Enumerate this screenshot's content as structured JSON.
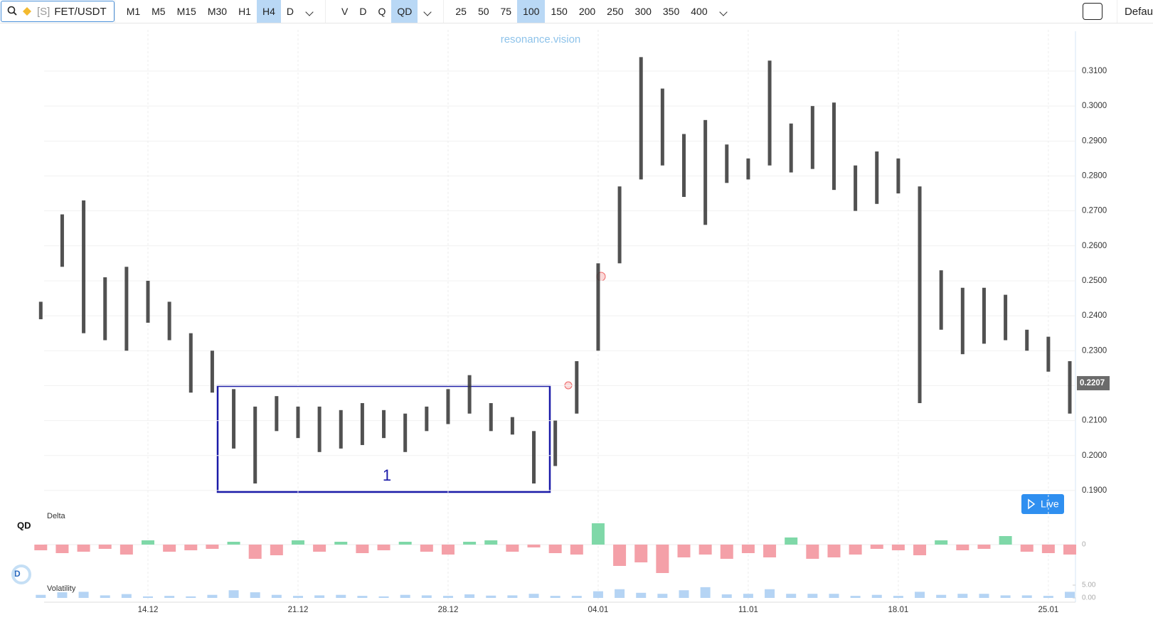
{
  "toolbar": {
    "symbol_prefix": "[S]",
    "symbol": "FET/USDT",
    "timeframes": [
      {
        "label": "M1",
        "active": false
      },
      {
        "label": "M5",
        "active": false
      },
      {
        "label": "M15",
        "active": false
      },
      {
        "label": "M30",
        "active": false
      },
      {
        "label": "H1",
        "active": false
      },
      {
        "label": "H4",
        "active": true
      },
      {
        "label": "D",
        "active": false
      }
    ],
    "modes": [
      {
        "label": "V",
        "active": false
      },
      {
        "label": "D",
        "active": false
      },
      {
        "label": "Q",
        "active": false
      },
      {
        "label": "QD",
        "active": true
      }
    ],
    "counts": [
      {
        "label": "25",
        "active": false
      },
      {
        "label": "50",
        "active": false
      },
      {
        "label": "75",
        "active": false
      },
      {
        "label": "100",
        "active": true
      },
      {
        "label": "150",
        "active": false
      },
      {
        "label": "200",
        "active": false
      },
      {
        "label": "250",
        "active": false
      },
      {
        "label": "300",
        "active": false
      },
      {
        "label": "350",
        "active": false
      },
      {
        "label": "400",
        "active": false
      }
    ],
    "layout": "Defau"
  },
  "watermark": "resonance.vision",
  "annotation": "1",
  "panel_labels": {
    "qd": "QD",
    "d": "D",
    "delta": "Delta",
    "volatility": "Volatility"
  },
  "live_button": "Live",
  "chart_data": {
    "type": "range-bar",
    "categories": [
      null,
      null,
      null,
      null,
      null,
      "14.12",
      null,
      null,
      null,
      null,
      null,
      null,
      "21.12",
      null,
      null,
      null,
      null,
      null,
      null,
      "28.12",
      null,
      null,
      null,
      null,
      null,
      null,
      "04.01",
      null,
      null,
      null,
      null,
      null,
      null,
      "11.01",
      null,
      null,
      null,
      null,
      null,
      null,
      "18.01",
      null,
      null,
      null,
      null,
      null,
      null,
      "25.01",
      null
    ],
    "series": [
      {
        "name": "High",
        "color": "#333333",
        "values": [
          0.244,
          0.269,
          0.273,
          0.251,
          0.254,
          0.25,
          0.244,
          0.235,
          0.23,
          0.219,
          0.214,
          0.217,
          0.214,
          0.214,
          0.213,
          0.215,
          0.213,
          0.212,
          0.214,
          0.219,
          0.223,
          0.215,
          0.211,
          0.207,
          0.21,
          0.227,
          0.255,
          0.277,
          0.314,
          0.305,
          0.292,
          0.296,
          0.289,
          0.285,
          0.313,
          0.295,
          0.3,
          0.301,
          0.283,
          0.287,
          0.285,
          0.277,
          0.253,
          0.248,
          0.248,
          0.246,
          0.236,
          0.234,
          0.227
        ]
      },
      {
        "name": "Low",
        "color": "#333333",
        "values": [
          0.239,
          0.254,
          0.235,
          0.233,
          0.23,
          0.238,
          0.233,
          0.218,
          0.218,
          0.202,
          0.192,
          0.207,
          0.205,
          0.201,
          0.202,
          0.203,
          0.205,
          0.201,
          0.207,
          0.209,
          0.212,
          0.207,
          0.206,
          0.192,
          0.197,
          0.212,
          0.23,
          0.255,
          0.279,
          0.283,
          0.274,
          0.266,
          0.278,
          0.279,
          0.283,
          0.281,
          0.282,
          0.276,
          0.27,
          0.272,
          0.275,
          0.215,
          0.236,
          0.229,
          0.232,
          0.233,
          0.23,
          0.224,
          0.212
        ]
      }
    ],
    "ylim": [
      0.1855,
      0.3218
    ],
    "yticks": [
      {
        "value": 0.19,
        "label": "0.1900"
      },
      {
        "value": 0.2,
        "label": "0.2000"
      },
      {
        "value": 0.21,
        "label": "0.2100"
      },
      {
        "value": 0.22,
        "label": "0.2200"
      },
      {
        "value": 0.23,
        "label": "0.2300"
      },
      {
        "value": 0.24,
        "label": "0.2400"
      },
      {
        "value": 0.25,
        "label": "0.2500"
      },
      {
        "value": 0.26,
        "label": "0.2600"
      },
      {
        "value": 0.27,
        "label": "0.2700"
      },
      {
        "value": 0.28,
        "label": "0.2800"
      },
      {
        "value": 0.29,
        "label": "0.2900"
      },
      {
        "value": 0.3,
        "label": "0.3000"
      },
      {
        "value": 0.31,
        "label": "0.3100"
      }
    ],
    "current_price": {
      "value": 0.2207,
      "label": "0.2207"
    },
    "grid": true,
    "delta": {
      "values": [
        -8,
        -12,
        -10,
        -6,
        -14,
        6,
        -10,
        -8,
        -6,
        4,
        -20,
        -15,
        6,
        -10,
        4,
        -12,
        -8,
        4,
        -10,
        -14,
        4,
        6,
        -10,
        -4,
        -12,
        -14,
        30,
        -30,
        -25,
        -40,
        -18,
        -14,
        -20,
        -12,
        -18,
        10,
        -20,
        -18,
        -14,
        -6,
        -8,
        -15,
        6,
        -8,
        -6,
        12,
        -10,
        -12,
        -14
      ],
      "positive_color": "#7fd8a8",
      "negative_color": "#f4a0a8",
      "ylim": [
        -45,
        35
      ],
      "yticks": [
        0
      ]
    },
    "volatility": {
      "values": [
        1.2,
        2.2,
        2.4,
        1.0,
        1.5,
        0.6,
        0.8,
        0.6,
        1.2,
        3.0,
        2.2,
        1.2,
        0.8,
        1.0,
        1.2,
        0.8,
        0.6,
        1.2,
        1.0,
        0.8,
        1.4,
        0.9,
        1.0,
        1.6,
        0.8,
        0.8,
        2.6,
        3.4,
        2.0,
        1.6,
        3.0,
        4.2,
        1.4,
        1.6,
        3.4,
        1.6,
        1.6,
        1.6,
        0.8,
        1.2,
        0.8,
        2.4,
        1.2,
        1.6,
        1.6,
        1.0,
        1.0,
        0.8,
        2.4
      ],
      "color": "#b5d4f4",
      "ylim": [
        0,
        6
      ],
      "yticks": [
        {
          "value": 0,
          "label": "0.00"
        },
        {
          "value": 5,
          "label": "5.00"
        }
      ]
    }
  }
}
